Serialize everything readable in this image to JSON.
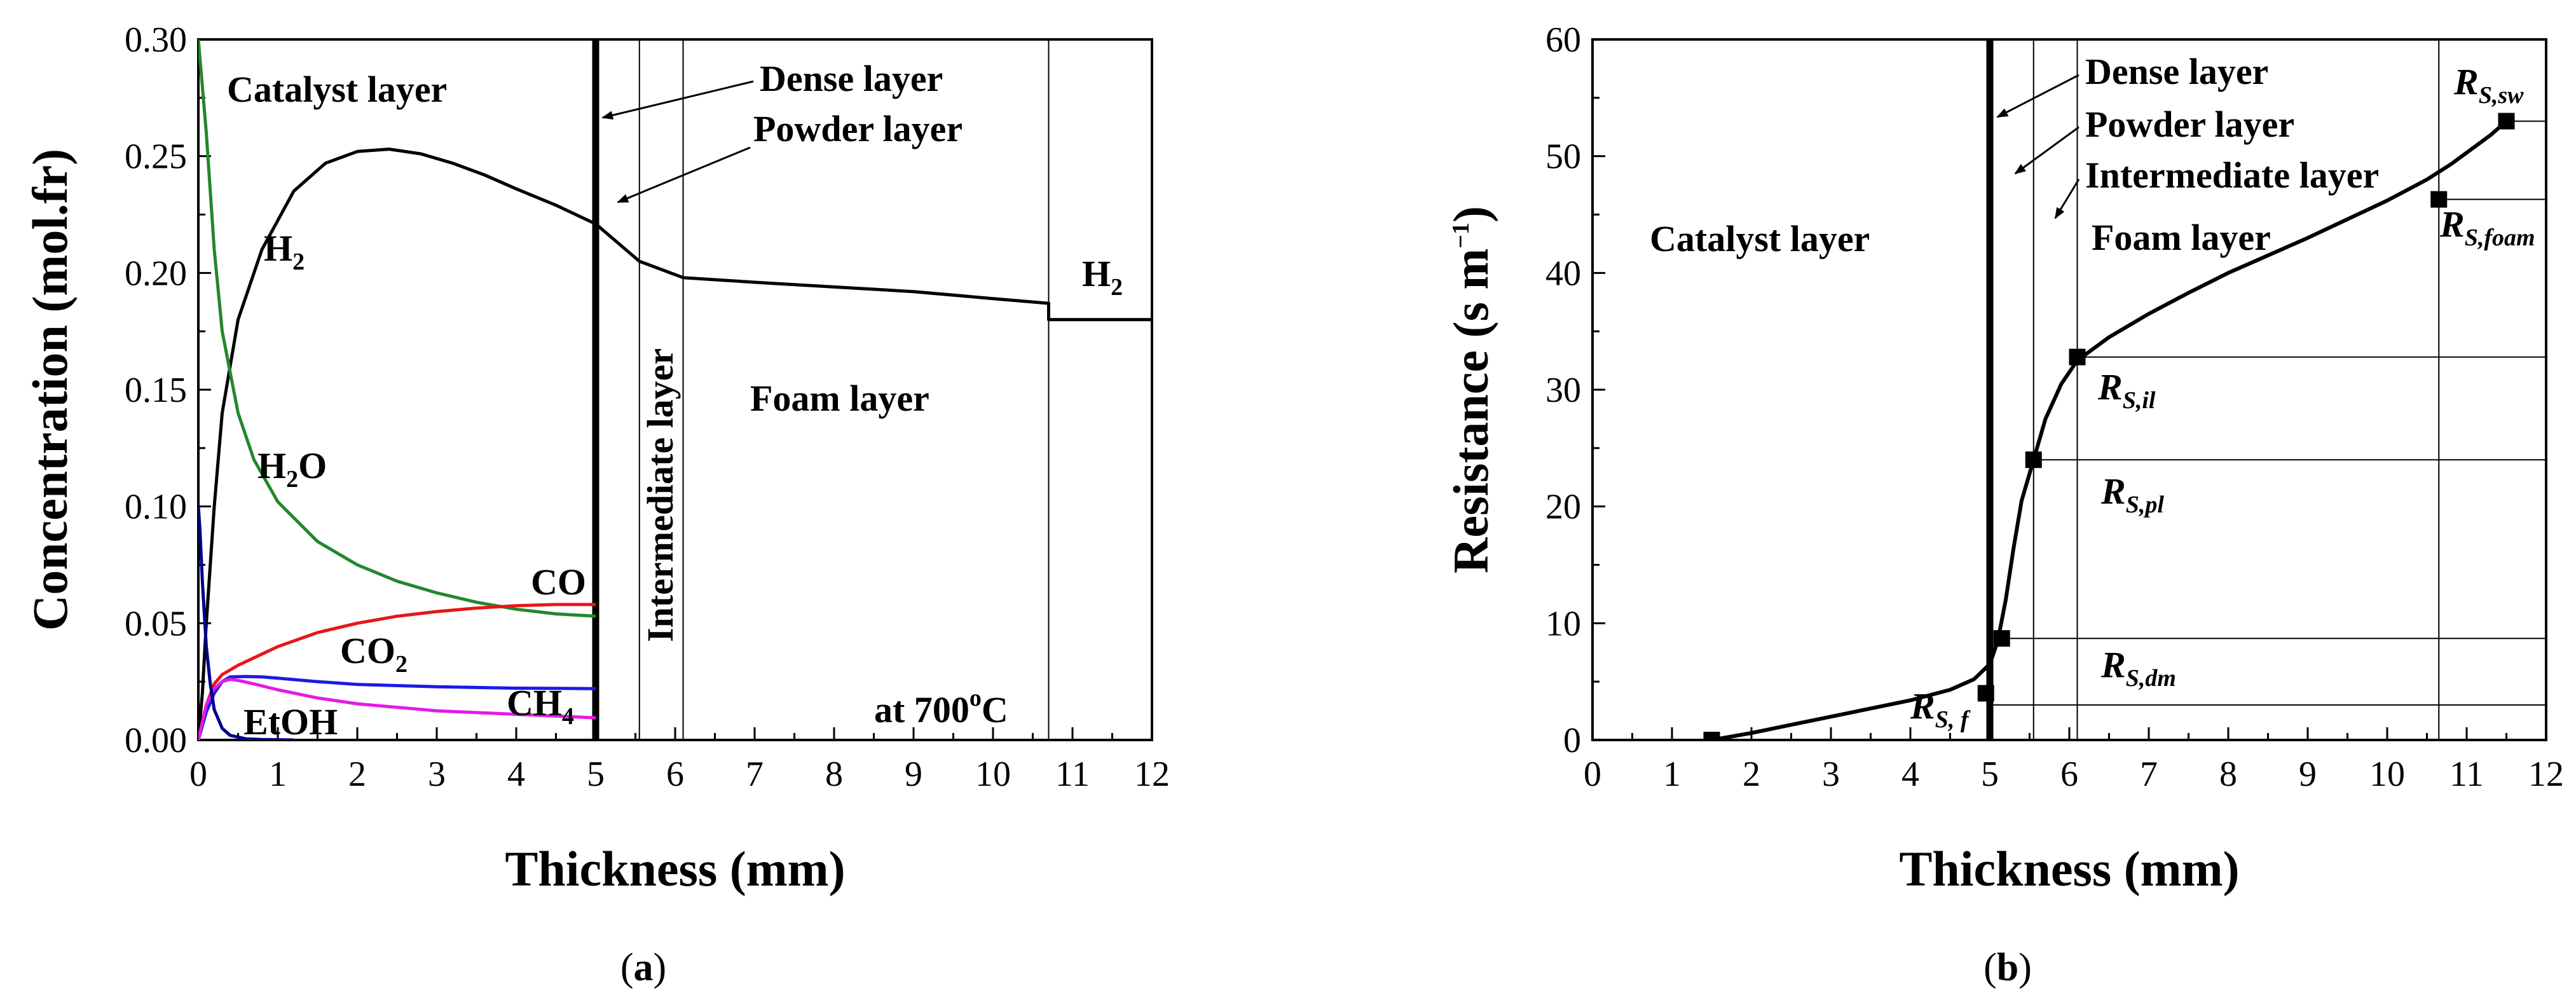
{
  "chart_data": [
    {
      "panel": "a",
      "type": "line",
      "xlabel": "Thickness (mm)",
      "ylabel": "Concentration (mol.fr)",
      "xlim": [
        0,
        12
      ],
      "ylim": [
        0,
        0.3
      ],
      "xticks": [
        "0",
        "1",
        "2",
        "3",
        "4",
        "5",
        "6",
        "7",
        "8",
        "9",
        "10",
        "11",
        "12"
      ],
      "yticks": [
        "0.00",
        "0.05",
        "0.10",
        "0.15",
        "0.20",
        "0.25",
        "0.30"
      ],
      "boundaries": [
        5.0,
        5.55,
        6.1,
        10.7
      ],
      "series": [
        {
          "name": "H₂",
          "color": "#000000",
          "x": [
            0,
            0.05,
            0.1,
            0.2,
            0.3,
            0.5,
            0.8,
            1.2,
            1.6,
            2.0,
            2.4,
            2.8,
            3.2,
            3.6,
            4.0,
            4.5,
            5.0,
            5.55,
            6.1,
            7,
            8,
            9,
            10,
            10.7,
            10.7,
            12
          ],
          "y": [
            0,
            0.02,
            0.05,
            0.1,
            0.14,
            0.18,
            0.21,
            0.235,
            0.247,
            0.252,
            0.253,
            0.251,
            0.247,
            0.242,
            0.236,
            0.229,
            0.221,
            0.205,
            0.198,
            0.196,
            0.194,
            0.192,
            0.189,
            0.187,
            0.18,
            0.18
          ]
        },
        {
          "name": "H₂O",
          "color": "#22882a",
          "x": [
            0,
            0.1,
            0.2,
            0.3,
            0.5,
            0.7,
            1.0,
            1.5,
            2.0,
            2.5,
            3.0,
            3.5,
            4.0,
            4.5,
            5.0
          ],
          "y": [
            0.3,
            0.26,
            0.21,
            0.175,
            0.14,
            0.12,
            0.102,
            0.085,
            0.075,
            0.068,
            0.063,
            0.059,
            0.056,
            0.054,
            0.053
          ]
        },
        {
          "name": "CO",
          "color": "#e8151a",
          "x": [
            0,
            0.1,
            0.2,
            0.3,
            0.5,
            1.0,
            1.5,
            2.0,
            2.5,
            3.0,
            3.5,
            4.0,
            4.5,
            5.0
          ],
          "y": [
            0,
            0.015,
            0.024,
            0.028,
            0.032,
            0.04,
            0.046,
            0.05,
            0.053,
            0.055,
            0.0565,
            0.0575,
            0.058,
            0.058
          ]
        },
        {
          "name": "CO₂",
          "color": "#1a1ae6",
          "x": [
            0,
            0.1,
            0.2,
            0.3,
            0.4,
            0.6,
            0.8,
            1.0,
            1.5,
            2.0,
            3.0,
            4.0,
            5.0
          ],
          "y": [
            0,
            0.012,
            0.02,
            0.025,
            0.027,
            0.0272,
            0.027,
            0.0265,
            0.025,
            0.0238,
            0.0228,
            0.0222,
            0.022
          ]
        },
        {
          "name": "CH₄",
          "color": "#e619e6",
          "x": [
            0,
            0.1,
            0.2,
            0.3,
            0.4,
            0.5,
            0.7,
            1.0,
            1.5,
            2.0,
            3.0,
            4.0,
            5.0
          ],
          "y": [
            0,
            0.015,
            0.022,
            0.025,
            0.026,
            0.0255,
            0.024,
            0.0215,
            0.018,
            0.0155,
            0.0125,
            0.011,
            0.0095
          ]
        },
        {
          "name": "EtOH",
          "color": "#00008b",
          "x": [
            0,
            0.02,
            0.05,
            0.1,
            0.15,
            0.2,
            0.3,
            0.4,
            0.6,
            0.8,
            1.0,
            1.2
          ],
          "y": [
            0.1,
            0.09,
            0.068,
            0.04,
            0.024,
            0.013,
            0.005,
            0.002,
            0.0005,
            0.0002,
            0.0001,
            0
          ]
        }
      ],
      "annotations": {
        "catalyst": "Catalyst layer",
        "dense": "Dense layer",
        "powder": "Powder layer",
        "intermediate": "Intermediate layer",
        "foam": "Foam layer",
        "temp_main": "at 700",
        "temp_sup": "o",
        "temp_unit": "C",
        "h2_left_main": "H",
        "h2_left_sub": "2",
        "h2_right_main": "H",
        "h2_right_sub": "2",
        "h2o_main": "H",
        "h2o_sub": "2",
        "h2o_end": "O",
        "co": "CO",
        "co2_main": "CO",
        "co2_sub": "2",
        "ch4_main": "CH",
        "ch4_sub": "4",
        "etoh": "EtOH"
      }
    },
    {
      "panel": "b",
      "type": "line",
      "xlabel": "Thickness (mm)",
      "ylabel_main": "Resistance (s m",
      "ylabel_sup": "−1",
      "ylabel_end": ")",
      "xlim": [
        0,
        12
      ],
      "ylim": [
        0,
        60
      ],
      "xticks": [
        "0",
        "1",
        "2",
        "3",
        "4",
        "5",
        "6",
        "7",
        "8",
        "9",
        "10",
        "11",
        "12"
      ],
      "yticks": [
        "0",
        "10",
        "20",
        "30",
        "40",
        "50",
        "60"
      ],
      "boundaries": [
        5.0,
        5.55,
        6.1,
        10.65
      ],
      "curve": {
        "x": [
          1.5,
          2.0,
          2.5,
          3.0,
          3.5,
          4.0,
          4.5,
          4.8,
          5.0,
          5.1,
          5.2,
          5.3,
          5.4,
          5.55,
          5.7,
          5.9,
          6.1,
          6.5,
          7.0,
          7.5,
          8.0,
          8.5,
          9.0,
          9.5,
          10.0,
          10.5,
          10.8,
          11.0,
          11.3,
          11.5
        ],
        "y": [
          0,
          0.6,
          1.3,
          2.0,
          2.7,
          3.4,
          4.3,
          5.2,
          6.5,
          8.5,
          12,
          16.5,
          20.5,
          24,
          27.5,
          30.5,
          32.5,
          34.5,
          36.5,
          38.3,
          40.0,
          41.5,
          43.0,
          44.6,
          46.2,
          48.0,
          49.3,
          50.3,
          51.8,
          53.0
        ]
      },
      "markers": {
        "x": [
          1.5,
          4.95,
          5.15,
          5.55,
          6.1,
          10.65,
          11.5
        ],
        "y": [
          0,
          4,
          8.7,
          24,
          32.8,
          46.3,
          53.0
        ]
      },
      "hlines": {
        "x_start": [
          5.0,
          5.15,
          5.55,
          6.1,
          10.65,
          11.5
        ],
        "y": [
          3.0,
          8.7,
          24,
          32.8,
          46.3,
          53.0
        ]
      },
      "annotations": {
        "catalyst": "Catalyst layer",
        "dense": "Dense layer",
        "powder": "Powder layer",
        "intermediate": "Intermediate layer",
        "foam": "Foam layer",
        "r": "R",
        "rssw": "S,sw",
        "rsfoam": "S,foam",
        "rsil": "S,il",
        "rspl": "S,pl",
        "rsdm": "S,dm",
        "rsf": "S, f"
      }
    }
  ],
  "captions": {
    "a_open": "(",
    "a_letter": "a",
    "a_close": ")",
    "b_open": "(",
    "b_letter": "b",
    "b_close": ")"
  }
}
